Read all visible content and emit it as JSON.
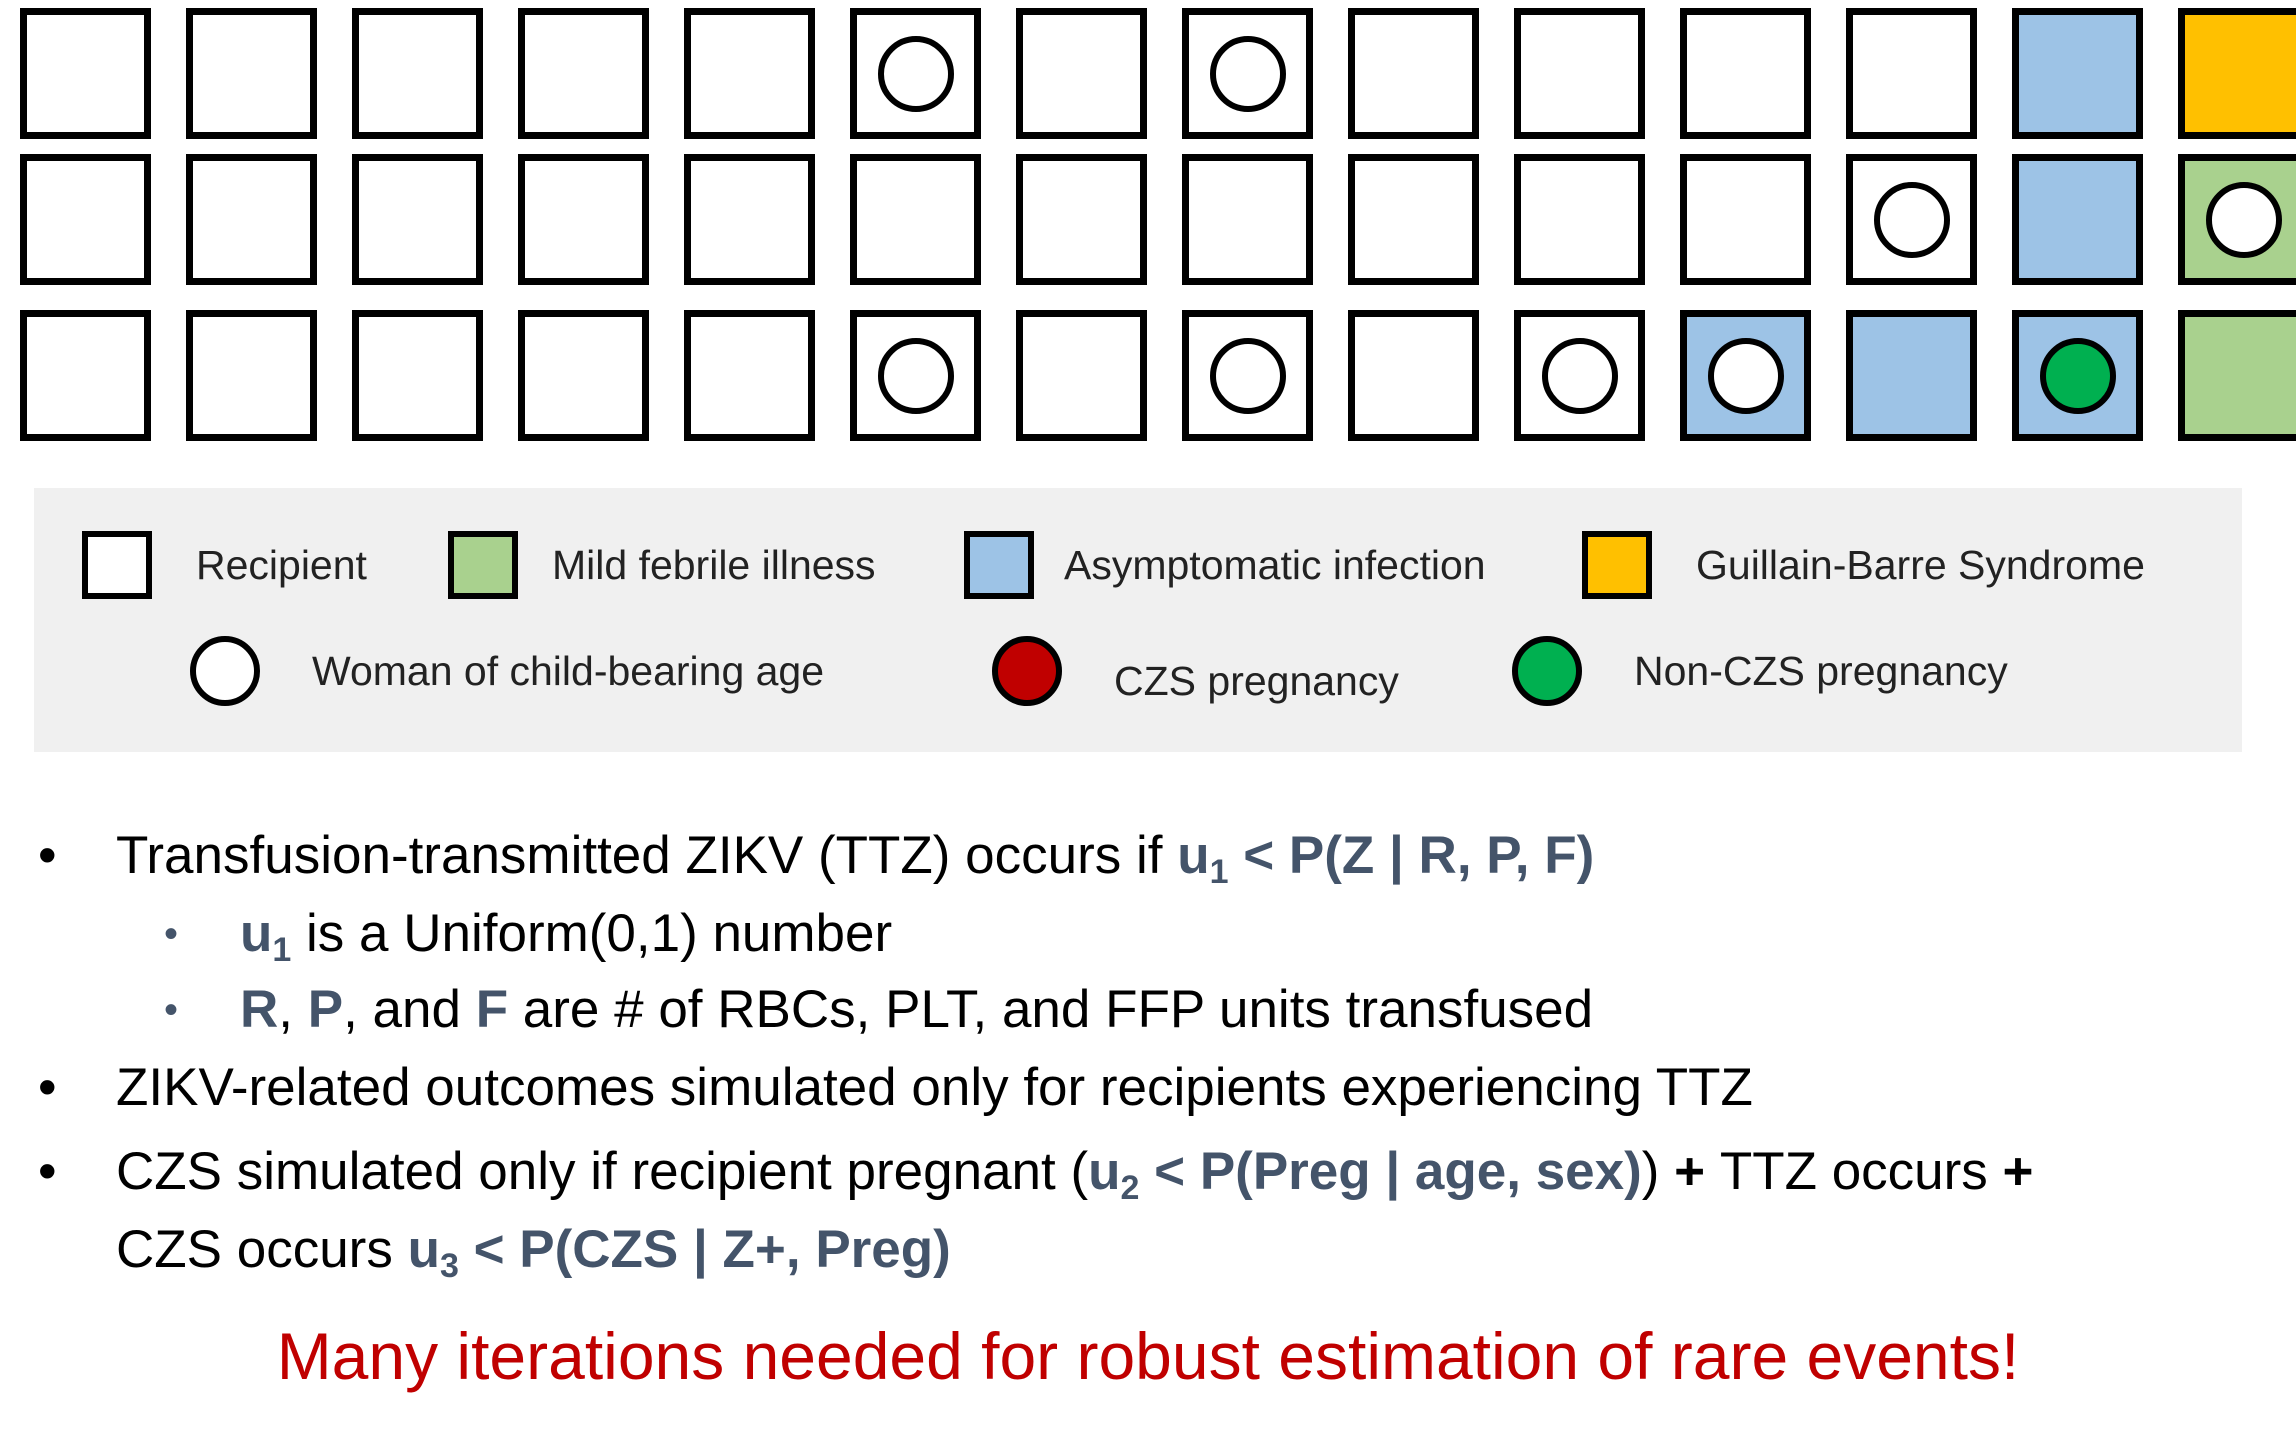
{
  "colors": {
    "recipient": "#ffffff",
    "mild_febrile": "#a9d18e",
    "asymptomatic": "#9dc3e6",
    "gbs": "#ffc000",
    "woman": "#ffffff",
    "czs": "#c00000",
    "non_czs": "#00b050",
    "highlight": "#44546a",
    "footer": "#c00000"
  },
  "grid": {
    "rows": [
      [
        {
          "fill": "recipient",
          "circle": null
        },
        {
          "fill": "recipient",
          "circle": null
        },
        {
          "fill": "recipient",
          "circle": null
        },
        {
          "fill": "recipient",
          "circle": null
        },
        {
          "fill": "recipient",
          "circle": null
        },
        {
          "fill": "recipient",
          "circle": "woman"
        },
        {
          "fill": "recipient",
          "circle": null
        },
        {
          "fill": "recipient",
          "circle": "woman"
        },
        {
          "fill": "recipient",
          "circle": null
        },
        {
          "fill": "recipient",
          "circle": null
        },
        {
          "fill": "recipient",
          "circle": null
        },
        {
          "fill": "recipient",
          "circle": null
        },
        {
          "fill": "asymptomatic",
          "circle": null
        },
        {
          "fill": "gbs",
          "circle": null
        }
      ],
      [
        {
          "fill": "recipient",
          "circle": null
        },
        {
          "fill": "recipient",
          "circle": null
        },
        {
          "fill": "recipient",
          "circle": null
        },
        {
          "fill": "recipient",
          "circle": null
        },
        {
          "fill": "recipient",
          "circle": null
        },
        {
          "fill": "recipient",
          "circle": null
        },
        {
          "fill": "recipient",
          "circle": null
        },
        {
          "fill": "recipient",
          "circle": null
        },
        {
          "fill": "recipient",
          "circle": null
        },
        {
          "fill": "recipient",
          "circle": null
        },
        {
          "fill": "recipient",
          "circle": null
        },
        {
          "fill": "recipient",
          "circle": "woman"
        },
        {
          "fill": "asymptomatic",
          "circle": null
        },
        {
          "fill": "mild_febrile",
          "circle": "woman"
        }
      ],
      [
        {
          "fill": "recipient",
          "circle": null
        },
        {
          "fill": "recipient",
          "circle": null
        },
        {
          "fill": "recipient",
          "circle": null
        },
        {
          "fill": "recipient",
          "circle": null
        },
        {
          "fill": "recipient",
          "circle": null
        },
        {
          "fill": "recipient",
          "circle": "woman"
        },
        {
          "fill": "recipient",
          "circle": null
        },
        {
          "fill": "recipient",
          "circle": "woman"
        },
        {
          "fill": "recipient",
          "circle": null
        },
        {
          "fill": "recipient",
          "circle": "woman"
        },
        {
          "fill": "asymptomatic",
          "circle": "woman"
        },
        {
          "fill": "asymptomatic",
          "circle": null
        },
        {
          "fill": "asymptomatic",
          "circle": "non_czs"
        },
        {
          "fill": "mild_febrile",
          "circle": null
        }
      ]
    ]
  },
  "legend": {
    "recipient": "Recipient",
    "mild_febrile": "Mild febrile illness",
    "asymptomatic": "Asymptomatic infection",
    "gbs": "Guillain-Barre Syndrome",
    "woman": "Woman of child-bearing age",
    "czs": "CZS pregnancy",
    "non_czs": "Non-CZS pregnancy"
  },
  "bullets": {
    "b1": {
      "pre": "Transfusion-transmitted ZIKV (TTZ) occurs if ",
      "u": "u",
      "u_sub": "1",
      "expr": " < P(Z | R, P, F)"
    },
    "b1a": {
      "u": "u",
      "u_sub": "1",
      "rest": " is a Uniform(0,1) number"
    },
    "b1b": {
      "r": "R",
      "comma1": ", ",
      "p": "P",
      "and": ", and ",
      "f": "F",
      "rest": " are # of RBCs, PLT, and FFP units transfused"
    },
    "b2": "ZIKV-related outcomes simulated only for recipients experiencing TTZ",
    "b3": {
      "pre": "CZS simulated only if recipient pregnant (",
      "u": "u",
      "u_sub": "2",
      "expr": " < P(Preg | age, sex)",
      "close": ")",
      "plus1": " + ",
      "mid": "TTZ occurs",
      "plus2": " +"
    },
    "b3b": {
      "pre": "CZS occurs ",
      "u": "u",
      "u_sub": "3",
      "expr": " < P(CZS | Z+, Preg)"
    },
    "bullet_char": "•"
  },
  "footer": "Many iterations needed for robust estimation of rare events!"
}
